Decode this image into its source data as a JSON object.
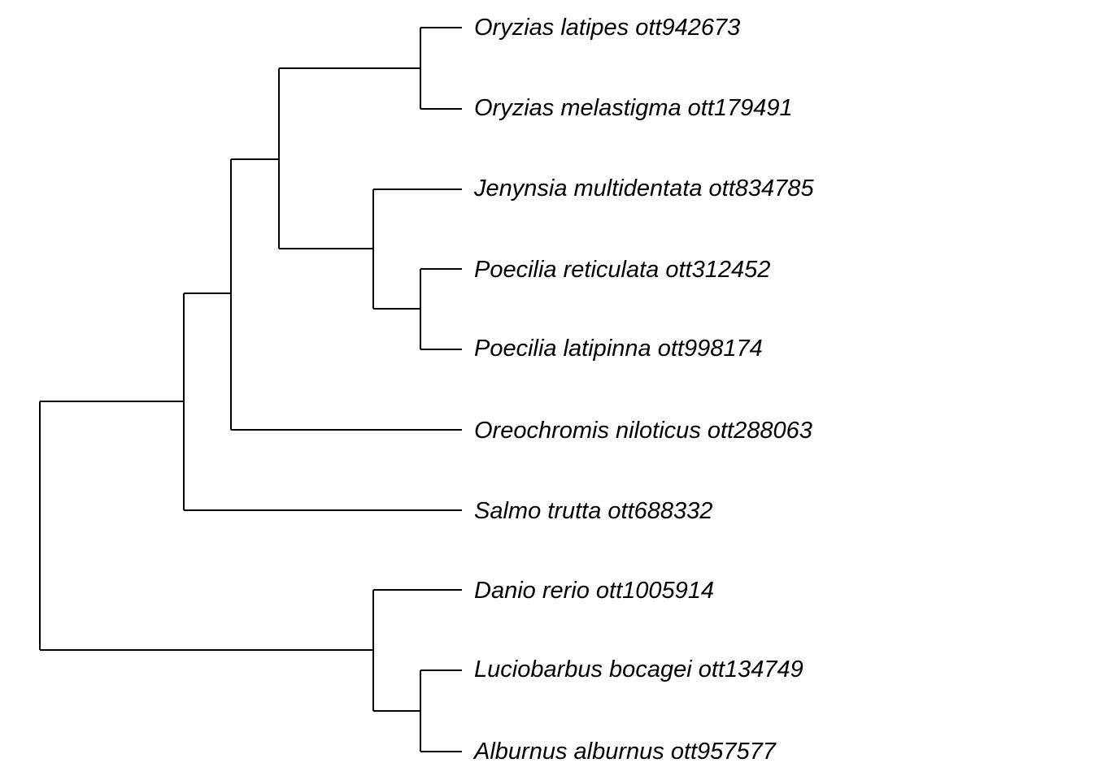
{
  "tree": {
    "tips": [
      {
        "label": "Oryzias latipes ott942673"
      },
      {
        "label": "Oryzias melastigma ott179491"
      },
      {
        "label": "Jenynsia multidentata ott834785"
      },
      {
        "label": "Poecilia reticulata ott312452"
      },
      {
        "label": "Poecilia latipinna ott998174"
      },
      {
        "label": "Oreochromis niloticus ott288063"
      },
      {
        "label": "Salmo trutta ott688332"
      },
      {
        "label": "Danio rerio ott1005914"
      },
      {
        "label": "Luciobarbus bocagei ott134749"
      },
      {
        "label": "Alburnus alburnus ott957577"
      }
    ],
    "line_color": "#000000"
  }
}
